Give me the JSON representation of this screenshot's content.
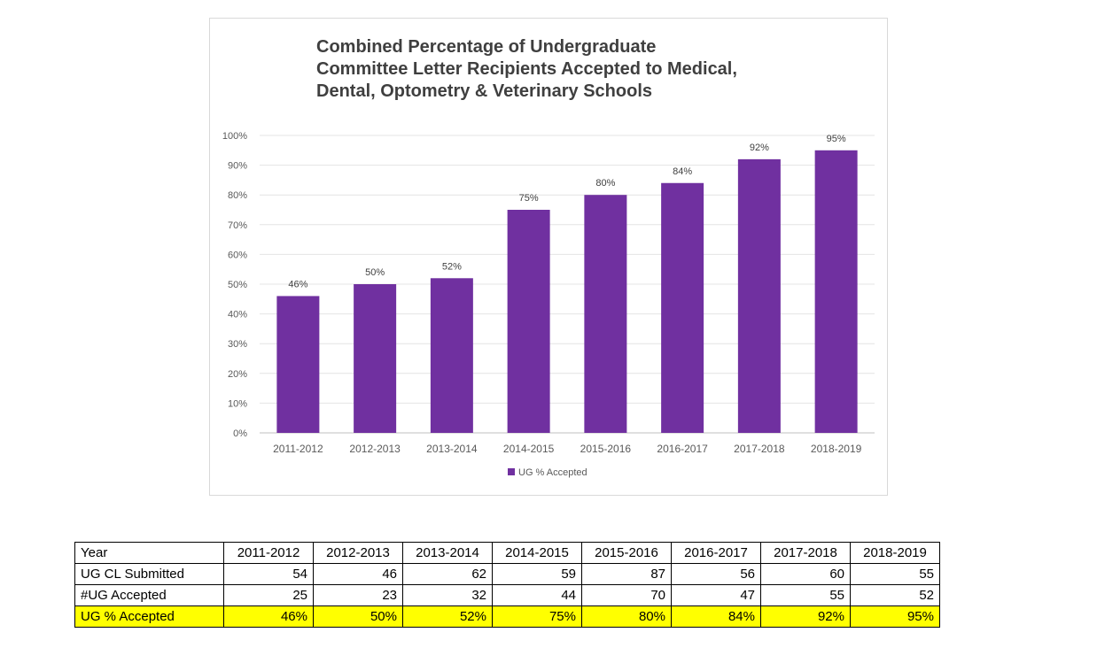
{
  "chart_data": {
    "type": "bar",
    "title": "Combined Percentage of Undergraduate Committee Letter Recipients Accepted to Medical, Dental, Optometry & Veterinary Schools",
    "categories": [
      "2011-2012",
      "2012-2013",
      "2013-2014",
      "2014-2015",
      "2015-2016",
      "2016-2017",
      "2017-2018",
      "2018-2019"
    ],
    "series": [
      {
        "name": "UG % Accepted",
        "values": [
          46,
          50,
          52,
          75,
          80,
          84,
          92,
          95
        ],
        "labels": [
          "46%",
          "50%",
          "52%",
          "75%",
          "80%",
          "84%",
          "92%",
          "95%"
        ],
        "color": "#7030a0"
      }
    ],
    "ylim": [
      0,
      100
    ],
    "yticks": [
      0,
      10,
      20,
      30,
      40,
      50,
      60,
      70,
      80,
      90,
      100
    ],
    "ytick_labels": [
      "0%",
      "10%",
      "20%",
      "30%",
      "40%",
      "50%",
      "60%",
      "70%",
      "80%",
      "90%",
      "100%"
    ],
    "xlabel": "",
    "ylabel": "",
    "grid": true,
    "legend_position": "bottom"
  },
  "table": {
    "header": [
      "Year",
      "2011-2012",
      "2012-2013",
      "2013-2014",
      "2014-2015",
      "2015-2016",
      "2016-2017",
      "2017-2018",
      "2018-2019"
    ],
    "rows": [
      {
        "label": "UG CL Submitted",
        "values": [
          "54",
          "46",
          "62",
          "59",
          "87",
          "56",
          "60",
          "55"
        ],
        "highlight": false
      },
      {
        "label": "#UG Accepted",
        "values": [
          "25",
          "23",
          "32",
          "44",
          "70",
          "47",
          "55",
          "52"
        ],
        "highlight": false
      },
      {
        "label": "UG % Accepted",
        "values": [
          "46%",
          "50%",
          "52%",
          "75%",
          "80%",
          "84%",
          "92%",
          "95%"
        ],
        "highlight": true
      }
    ],
    "highlight_color": "#ffff00"
  }
}
